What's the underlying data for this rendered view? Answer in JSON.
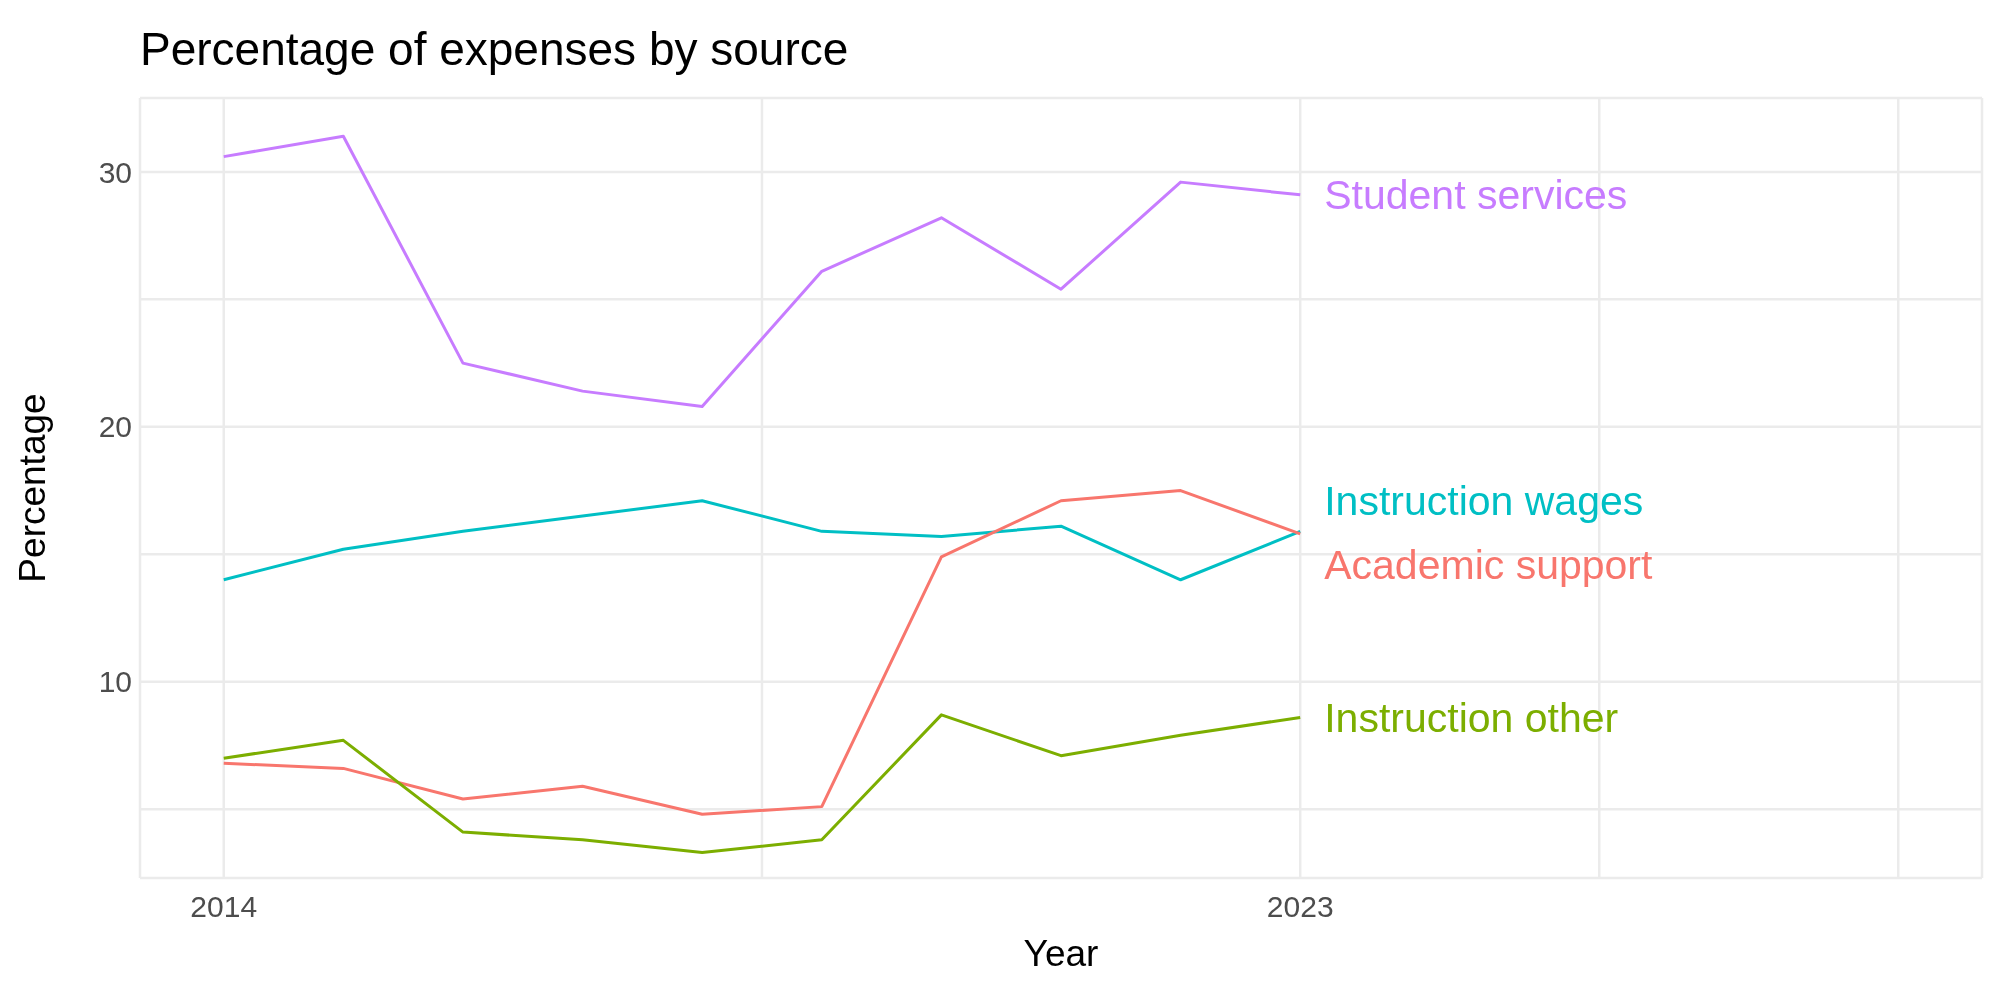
{
  "chart_data": {
    "type": "line",
    "title": "Percentage of expenses by source",
    "xlabel": "Year",
    "ylabel": "Percentage",
    "x": [
      2014,
      2015,
      2016,
      2017,
      2018,
      2019,
      2020,
      2021,
      2022,
      2023
    ],
    "series": [
      {
        "name": "Student services",
        "color": "#c77cff",
        "values": [
          30.6,
          31.4,
          22.5,
          21.4,
          20.8,
          26.1,
          28.2,
          25.4,
          29.6,
          29.1
        ]
      },
      {
        "name": "Instruction wages",
        "color": "#00bfc4",
        "values": [
          14.0,
          15.2,
          15.9,
          16.5,
          17.1,
          15.9,
          15.7,
          16.1,
          14.0,
          15.9
        ]
      },
      {
        "name": "Academic support",
        "color": "#f8766d",
        "values": [
          6.8,
          6.6,
          5.4,
          5.9,
          4.8,
          5.1,
          14.9,
          17.1,
          17.5,
          15.8
        ]
      },
      {
        "name": "Instruction other",
        "color": "#7cae00",
        "values": [
          7.0,
          7.7,
          4.1,
          3.8,
          3.3,
          3.8,
          8.7,
          7.1,
          7.9,
          8.6
        ]
      }
    ],
    "xlim": [
      2013.3,
      2028.7
    ],
    "xticks": [
      2014,
      {
        "value": 2018.5,
        "label": null
      },
      2023,
      {
        "value": 2025.5,
        "label": null
      },
      {
        "value": 2028,
        "label": null
      }
    ],
    "ylim": [
      2.3,
      32.9
    ],
    "yticks": [
      {
        "value": 5,
        "label": null
      },
      10,
      {
        "value": 15,
        "label": null
      },
      20,
      {
        "value": 25,
        "label": null
      },
      30
    ],
    "grid": true,
    "legend": false
  }
}
